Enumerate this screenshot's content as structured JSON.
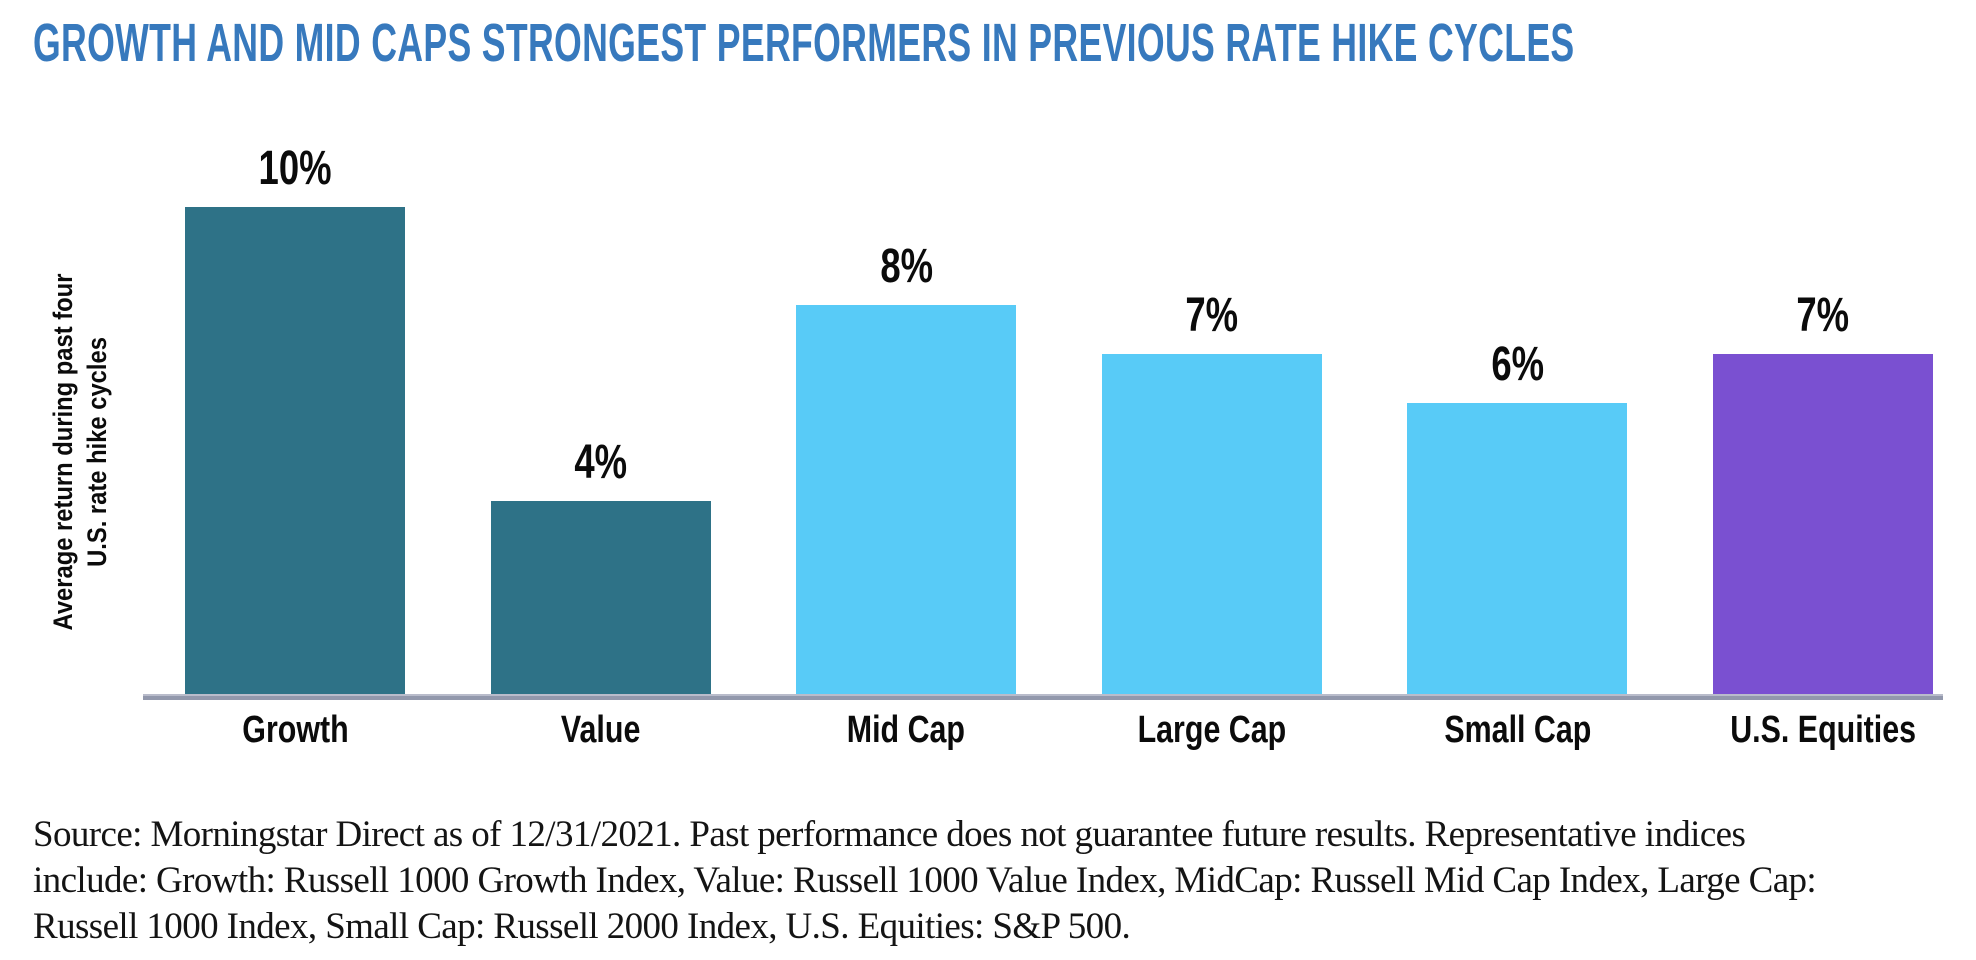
{
  "page": {
    "title": "GROWTH AND MID CAPS STRONGEST PERFORMERS IN PREVIOUS RATE HIKE CYCLES",
    "title_color": "#3779BD"
  },
  "chart_data": {
    "type": "bar",
    "title": "GROWTH AND MID CAPS STRONGEST PERFORMERS IN PREVIOUS RATE HIKE CYCLES",
    "categories": [
      "Growth",
      "Value",
      "Mid Cap",
      "Large Cap",
      "Small Cap",
      "U.S. Equities"
    ],
    "values": [
      10,
      4,
      8,
      7,
      6,
      7
    ],
    "value_labels": [
      "10%",
      "4%",
      "8%",
      "7%",
      "6%",
      "7%"
    ],
    "bar_colors": [
      "#2E7287",
      "#2E7287",
      "#58CBF7",
      "#58CBF7",
      "#58CBF7",
      "#7A50D1"
    ],
    "ylabel": "Average return during past four U.S. rate hike cycles",
    "ylabel_lines": [
      "Average return during past four",
      "U.S. rate hike cycles"
    ],
    "xlabel": "",
    "ylim": [
      0,
      10
    ],
    "grid": false,
    "legend": "none",
    "data_label_position": "above-bars",
    "axis_line_color": "#9298AC"
  },
  "footer": {
    "source_text": "Source: Morningstar Direct as of 12/31/2021. Past performance does not guarantee future results. Representative indices include: Growth: Russell 1000 Growth Index, Value: Russell 1000 Value Index, MidCap: Russell Mid Cap Index, Large Cap: Russell 1000 Index, Small Cap: Russell 2000 Index, U.S. Equities: S&P 500.",
    "source_lines": [
      "Source: Morningstar Direct as of 12/31/2021. Past performance does not guarantee future results. Representative indices",
      "include: Growth: Russell 1000 Growth Index, Value: Russell 1000 Value Index, MidCap: Russell Mid Cap Index, Large Cap:",
      "Russell 1000 Index, Small Cap: Russell 2000 Index, U.S. Equities: S&P 500."
    ]
  }
}
